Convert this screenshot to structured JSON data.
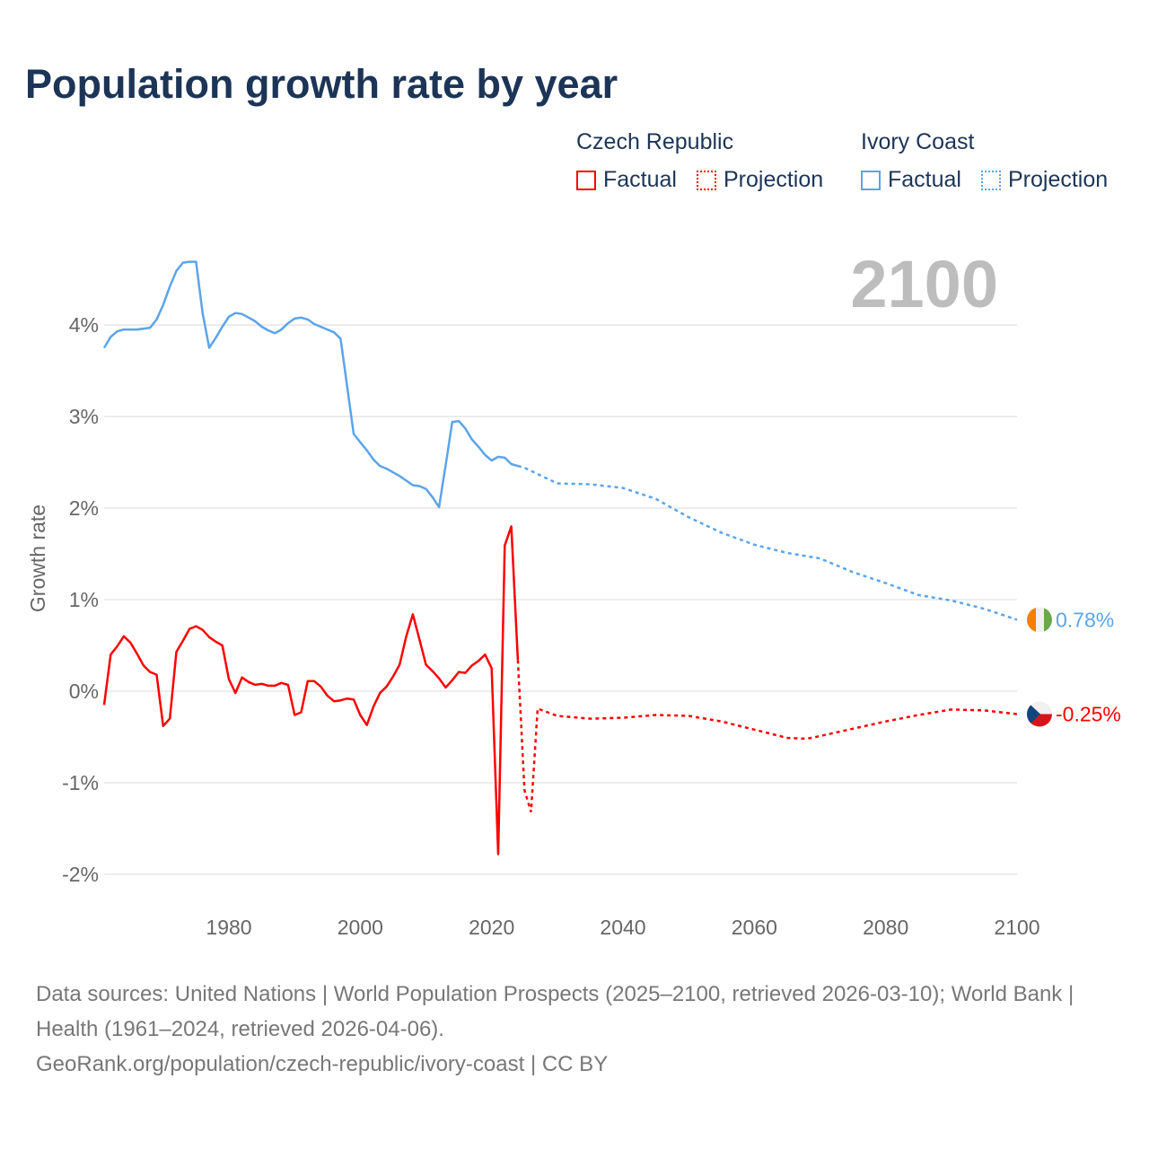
{
  "chart_data": {
    "type": "line",
    "title": "Population growth rate by year",
    "ylabel": "Growth rate",
    "xlabel": "",
    "xlim": [
      1961,
      2100
    ],
    "ylim": [
      -2,
      4.8
    ],
    "x_ticks": [
      "1980",
      "2000",
      "2020",
      "2040",
      "2060",
      "2080",
      "2100"
    ],
    "y_ticks": [
      {
        "v": 4,
        "label": "4%"
      },
      {
        "v": 3,
        "label": "3%"
      },
      {
        "v": 2,
        "label": "2%"
      },
      {
        "v": 1,
        "label": "1%"
      },
      {
        "v": 0,
        "label": "0%"
      },
      {
        "v": -1,
        "label": "-1%"
      },
      {
        "v": -2,
        "label": "-2%"
      }
    ],
    "year_label": "2100",
    "legend": {
      "groups": [
        {
          "name": "Czech Republic",
          "color": "#ff0000",
          "factual": "Factual",
          "projection": "Projection"
        },
        {
          "name": "Ivory Coast",
          "color": "#5ba4ea",
          "factual": "Factual",
          "projection": "Projection"
        }
      ]
    },
    "series": [
      {
        "name": "Czech Republic",
        "color": "#ff0000",
        "end_label": "-0.25%",
        "factual": [
          [
            1961,
            -0.15
          ],
          [
            1962,
            0.4
          ],
          [
            1963,
            0.49
          ],
          [
            1964,
            0.6
          ],
          [
            1965,
            0.53
          ],
          [
            1966,
            0.41
          ],
          [
            1967,
            0.28
          ],
          [
            1968,
            0.21
          ],
          [
            1969,
            0.18
          ],
          [
            1970,
            -0.38
          ],
          [
            1971,
            -0.3
          ],
          [
            1972,
            0.43
          ],
          [
            1973,
            0.55
          ],
          [
            1974,
            0.68
          ],
          [
            1975,
            0.71
          ],
          [
            1976,
            0.67
          ],
          [
            1977,
            0.59
          ],
          [
            1978,
            0.54
          ],
          [
            1979,
            0.5
          ],
          [
            1980,
            0.13
          ],
          [
            1981,
            -0.02
          ],
          [
            1982,
            0.15
          ],
          [
            1983,
            0.1
          ],
          [
            1984,
            0.07
          ],
          [
            1985,
            0.08
          ],
          [
            1986,
            0.06
          ],
          [
            1987,
            0.06
          ],
          [
            1988,
            0.09
          ],
          [
            1989,
            0.07
          ],
          [
            1990,
            -0.26
          ],
          [
            1991,
            -0.23
          ],
          [
            1992,
            0.11
          ],
          [
            1993,
            0.11
          ],
          [
            1994,
            0.05
          ],
          [
            1995,
            -0.05
          ],
          [
            1996,
            -0.11
          ],
          [
            1997,
            -0.1
          ],
          [
            1998,
            -0.08
          ],
          [
            1999,
            -0.09
          ],
          [
            2000,
            -0.26
          ],
          [
            2001,
            -0.37
          ],
          [
            2002,
            -0.17
          ],
          [
            2003,
            -0.02
          ],
          [
            2004,
            0.05
          ],
          [
            2005,
            0.16
          ],
          [
            2006,
            0.29
          ],
          [
            2007,
            0.6
          ],
          [
            2008,
            0.84
          ],
          [
            2009,
            0.57
          ],
          [
            2010,
            0.29
          ],
          [
            2011,
            0.22
          ],
          [
            2012,
            0.14
          ],
          [
            2013,
            0.04
          ],
          [
            2014,
            0.12
          ],
          [
            2015,
            0.21
          ],
          [
            2016,
            0.2
          ],
          [
            2017,
            0.28
          ],
          [
            2018,
            0.33
          ],
          [
            2019,
            0.4
          ],
          [
            2020,
            0.25
          ],
          [
            2021,
            -1.78
          ],
          [
            2022,
            1.59
          ],
          [
            2023,
            1.8
          ],
          [
            2024,
            0.34
          ]
        ],
        "projection": [
          [
            2024,
            0.34
          ],
          [
            2025,
            -1.08
          ],
          [
            2026,
            -1.32
          ],
          [
            2027,
            -0.19
          ],
          [
            2030,
            -0.27
          ],
          [
            2035,
            -0.3
          ],
          [
            2040,
            -0.29
          ],
          [
            2045,
            -0.26
          ],
          [
            2050,
            -0.27
          ],
          [
            2055,
            -0.33
          ],
          [
            2060,
            -0.42
          ],
          [
            2065,
            -0.51
          ],
          [
            2068,
            -0.52
          ],
          [
            2070,
            -0.49
          ],
          [
            2075,
            -0.41
          ],
          [
            2080,
            -0.33
          ],
          [
            2085,
            -0.26
          ],
          [
            2090,
            -0.2
          ],
          [
            2095,
            -0.21
          ],
          [
            2100,
            -0.25
          ]
        ]
      },
      {
        "name": "Ivory Coast",
        "color": "#5ba4ea",
        "end_label": "0.78%",
        "factual": [
          [
            1961,
            3.75
          ],
          [
            1962,
            3.87
          ],
          [
            1963,
            3.93
          ],
          [
            1964,
            3.95
          ],
          [
            1965,
            3.95
          ],
          [
            1966,
            3.95
          ],
          [
            1967,
            3.96
          ],
          [
            1968,
            3.97
          ],
          [
            1969,
            4.06
          ],
          [
            1970,
            4.22
          ],
          [
            1971,
            4.42
          ],
          [
            1972,
            4.59
          ],
          [
            1973,
            4.68
          ],
          [
            1974,
            4.69
          ],
          [
            1975,
            4.69
          ],
          [
            1976,
            4.13
          ],
          [
            1977,
            3.75
          ],
          [
            1978,
            3.86
          ],
          [
            1979,
            3.98
          ],
          [
            1980,
            4.09
          ],
          [
            1981,
            4.13
          ],
          [
            1982,
            4.12
          ],
          [
            1983,
            4.08
          ],
          [
            1984,
            4.04
          ],
          [
            1985,
            3.98
          ],
          [
            1986,
            3.94
          ],
          [
            1987,
            3.91
          ],
          [
            1988,
            3.95
          ],
          [
            1989,
            4.02
          ],
          [
            1990,
            4.07
          ],
          [
            1991,
            4.08
          ],
          [
            1992,
            4.06
          ],
          [
            1993,
            4.01
          ],
          [
            1994,
            3.98
          ],
          [
            1995,
            3.95
          ],
          [
            1996,
            3.92
          ],
          [
            1997,
            3.85
          ],
          [
            1998,
            3.33
          ],
          [
            1999,
            2.81
          ],
          [
            2000,
            2.72
          ],
          [
            2001,
            2.63
          ],
          [
            2002,
            2.53
          ],
          [
            2003,
            2.46
          ],
          [
            2004,
            2.43
          ],
          [
            2005,
            2.39
          ],
          [
            2006,
            2.35
          ],
          [
            2007,
            2.3
          ],
          [
            2008,
            2.25
          ],
          [
            2009,
            2.24
          ],
          [
            2010,
            2.21
          ],
          [
            2011,
            2.12
          ],
          [
            2012,
            2.01
          ],
          [
            2013,
            2.47
          ],
          [
            2014,
            2.94
          ],
          [
            2015,
            2.95
          ],
          [
            2016,
            2.87
          ],
          [
            2017,
            2.75
          ],
          [
            2018,
            2.67
          ],
          [
            2019,
            2.58
          ],
          [
            2020,
            2.52
          ],
          [
            2021,
            2.56
          ],
          [
            2022,
            2.55
          ],
          [
            2023,
            2.48
          ],
          [
            2024,
            2.46
          ]
        ],
        "projection": [
          [
            2024,
            2.46
          ],
          [
            2025,
            2.44
          ],
          [
            2030,
            2.27
          ],
          [
            2035,
            2.26
          ],
          [
            2040,
            2.22
          ],
          [
            2045,
            2.1
          ],
          [
            2050,
            1.9
          ],
          [
            2055,
            1.73
          ],
          [
            2060,
            1.6
          ],
          [
            2065,
            1.51
          ],
          [
            2070,
            1.45
          ],
          [
            2075,
            1.3
          ],
          [
            2080,
            1.18
          ],
          [
            2085,
            1.05
          ],
          [
            2090,
            0.99
          ],
          [
            2095,
            0.9
          ],
          [
            2100,
            0.78
          ]
        ]
      }
    ]
  },
  "footer": {
    "sources": "Data sources: United Nations | World Population Prospects (2025–2100, retrieved 2026-03-10); World Bank | Health (1961–2024, retrieved 2026-04-06).",
    "credit": "GeoRank.org/population/czech-republic/ivory-coast | CC BY"
  }
}
